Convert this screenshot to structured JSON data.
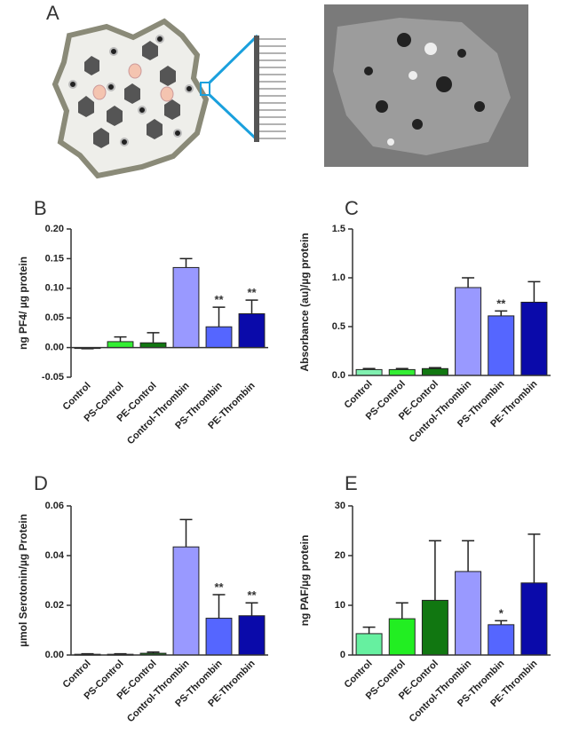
{
  "figure": {
    "panel_label": "A"
  },
  "chart_data": [
    {
      "type": "bar",
      "panel": "B",
      "ylabel": "ng PF4/ µg protein",
      "categories": [
        "Control",
        "PS-Control",
        "PE-Control",
        "Control-Thrombin",
        "PS-Thrombin",
        "PE-Thrombin"
      ],
      "values": [
        -0.001,
        0.01,
        0.008,
        0.135,
        0.035,
        0.057
      ],
      "errors": [
        0.001,
        0.008,
        0.017,
        0.015,
        0.033,
        0.023
      ],
      "colors": [
        "#80f0b0",
        "#33ee33",
        "#117711",
        "#9999ff",
        "#5566ff",
        "#0a0aaa"
      ],
      "annotations": [
        null,
        null,
        null,
        null,
        "**",
        "**"
      ],
      "ylim": [
        -0.05,
        0.2
      ],
      "yticks": [
        {
          "value": -0.05,
          "label": "-0.05"
        },
        {
          "value": 0,
          "label": "0.00"
        },
        {
          "value": 0.05,
          "label": "0.05"
        },
        {
          "value": 0.1,
          "label": "0.10"
        },
        {
          "value": 0.15,
          "label": "0.15"
        },
        {
          "value": 0.2,
          "label": "0.20"
        }
      ]
    },
    {
      "type": "bar",
      "panel": "C",
      "ylabel": "Absorbance (au)/µg protein",
      "categories": [
        "Control",
        "PS-Control",
        "PE-Control",
        "Control-Thrombin",
        "PS-Thrombin",
        "PE-Thrombin"
      ],
      "values": [
        0.06,
        0.06,
        0.07,
        0.9,
        0.61,
        0.75
      ],
      "errors": [
        0.01,
        0.01,
        0.01,
        0.1,
        0.05,
        0.21
      ],
      "colors": [
        "#80f0b0",
        "#33ee33",
        "#117711",
        "#9999ff",
        "#5566ff",
        "#0a0aaa"
      ],
      "annotations": [
        null,
        null,
        null,
        null,
        "**",
        null
      ],
      "ylim": [
        0,
        1.5
      ],
      "yticks": [
        {
          "value": 0,
          "label": "0.0"
        },
        {
          "value": 0.5,
          "label": "0.5"
        },
        {
          "value": 1,
          "label": "1.0"
        },
        {
          "value": 1.5,
          "label": "1.5"
        }
      ]
    },
    {
      "type": "bar",
      "panel": "D",
      "ylabel": "µmol Serotonin/µg Protein",
      "categories": [
        "Control",
        "PS-Control",
        "PE-Control",
        "Control-Thrombin",
        "PS-Thrombin",
        "PE-Thrombin"
      ],
      "values": [
        0.0003,
        0.0003,
        0.0007,
        0.0435,
        0.0148,
        0.0158
      ],
      "errors": [
        0.0002,
        0.0002,
        0.0005,
        0.011,
        0.0095,
        0.0052
      ],
      "colors": [
        "#80f0b0",
        "#33ee33",
        "#117711",
        "#9999ff",
        "#5566ff",
        "#0a0aaa"
      ],
      "annotations": [
        null,
        null,
        null,
        null,
        "**",
        "**"
      ],
      "ylim": [
        0,
        0.06
      ],
      "yticks": [
        {
          "value": 0,
          "label": "0.00"
        },
        {
          "value": 0.02,
          "label": "0.02"
        },
        {
          "value": 0.04,
          "label": "0.04"
        },
        {
          "value": 0.06,
          "label": "0.06"
        }
      ]
    },
    {
      "type": "bar",
      "panel": "E",
      "ylabel": "ng PAF/µg protein",
      "categories": [
        "Control",
        "PS-Control",
        "PE-Control",
        "Control-Thrombin",
        "PS-Thrombin",
        "PE-Thrombin"
      ],
      "values": [
        4.3,
        7.3,
        11,
        16.8,
        6.1,
        14.5
      ],
      "errors": [
        1.3,
        3.2,
        12,
        6.2,
        0.8,
        9.8
      ],
      "colors": [
        "#66f0a0",
        "#22ee22",
        "#117711",
        "#9999ff",
        "#5566ff",
        "#0a0aaa"
      ],
      "annotations": [
        null,
        null,
        null,
        null,
        "*",
        null
      ],
      "ylim": [
        0,
        30
      ],
      "yticks": [
        0,
        10,
        20,
        30
      ]
    }
  ]
}
